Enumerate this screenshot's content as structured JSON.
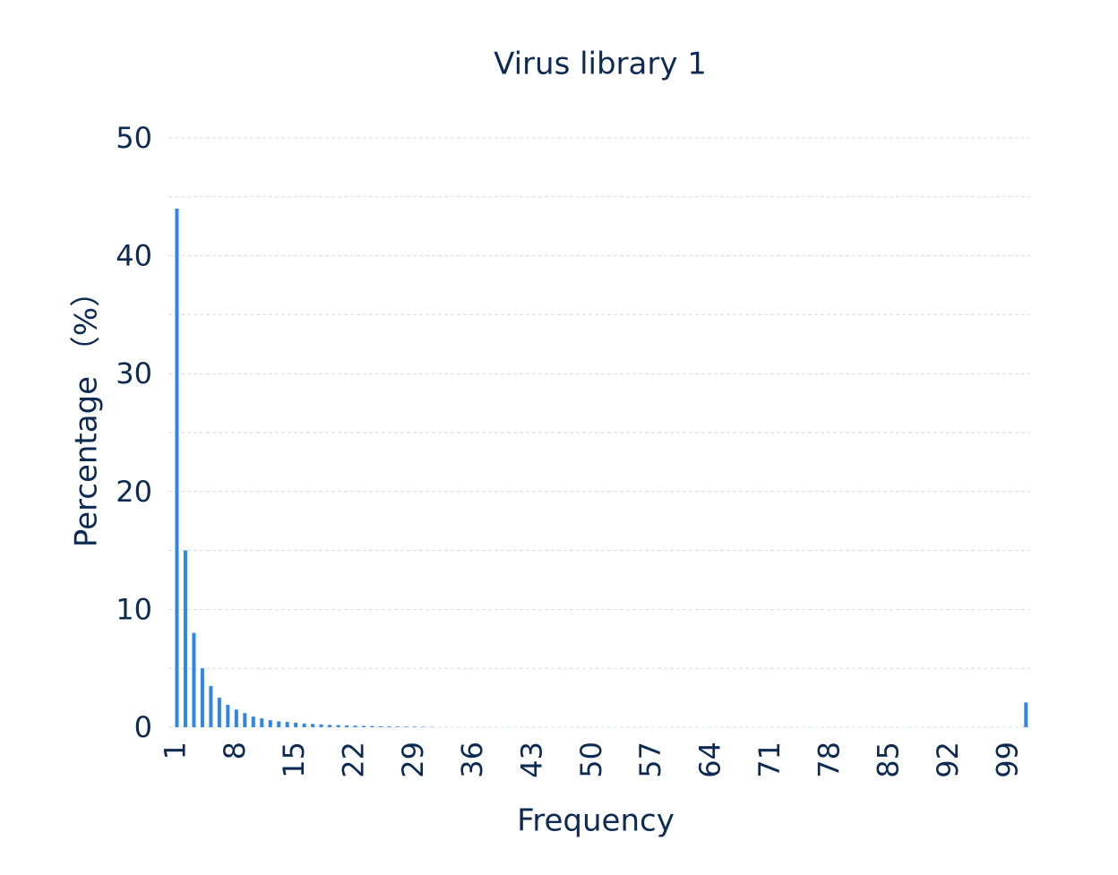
{
  "chart_data": {
    "type": "bar",
    "title": "Virus library 1",
    "x_label": "Frequency",
    "y_label": "Percentage （%）",
    "x": [
      1,
      2,
      3,
      4,
      5,
      6,
      7,
      8,
      9,
      10,
      11,
      12,
      13,
      14,
      15,
      16,
      17,
      18,
      19,
      20,
      21,
      22,
      23,
      24,
      25,
      26,
      27,
      28,
      29,
      30,
      31,
      32,
      33,
      34,
      35,
      36,
      37,
      38,
      39,
      40,
      41,
      42,
      43,
      44,
      45,
      46,
      47,
      48,
      49,
      50,
      51,
      52,
      53,
      54,
      55,
      56,
      57,
      58,
      59,
      60,
      61,
      62,
      63,
      64,
      65,
      66,
      67,
      68,
      69,
      70,
      71,
      72,
      73,
      74,
      75,
      76,
      77,
      78,
      79,
      80,
      81,
      82,
      83,
      84,
      85,
      86,
      87,
      88,
      89,
      90,
      91,
      92,
      93,
      94,
      95,
      96,
      97,
      98,
      99,
      100,
      101
    ],
    "values": [
      44,
      15,
      8,
      5,
      3.5,
      2.5,
      1.9,
      1.5,
      1.2,
      0.9,
      0.75,
      0.6,
      0.5,
      0.45,
      0.38,
      0.32,
      0.28,
      0.24,
      0.2,
      0.18,
      0.15,
      0.13,
      0.11,
      0.1,
      0.08,
      0.07,
      0.06,
      0.05,
      0.05,
      0.04,
      0.03,
      0,
      0,
      0,
      0,
      0,
      0,
      0,
      0,
      0,
      0,
      0,
      0,
      0,
      0,
      0,
      0,
      0,
      0,
      0,
      0,
      0,
      0,
      0,
      0,
      0,
      0,
      0,
      0,
      0,
      0,
      0,
      0,
      0,
      0,
      0,
      0,
      0,
      0,
      0,
      0,
      0,
      0,
      0,
      0,
      0,
      0,
      0,
      0,
      0,
      0,
      0,
      0,
      0,
      0,
      0,
      0,
      0,
      0,
      0,
      0,
      0,
      0,
      0,
      0,
      0,
      0,
      0,
      0,
      0,
      2.1
    ],
    "color": "#2f86e8",
    "xlim": [
      0,
      101.5
    ],
    "xticks": [
      1,
      8,
      15,
      22,
      29,
      36,
      43,
      50,
      57,
      64,
      71,
      78,
      85,
      92,
      99
    ],
    "ylim": [
      0,
      50
    ],
    "yticks": [
      0,
      10,
      20,
      30,
      40,
      50
    ],
    "minor_yticks": [
      5,
      15,
      25,
      35,
      45
    ],
    "grid": true
  }
}
